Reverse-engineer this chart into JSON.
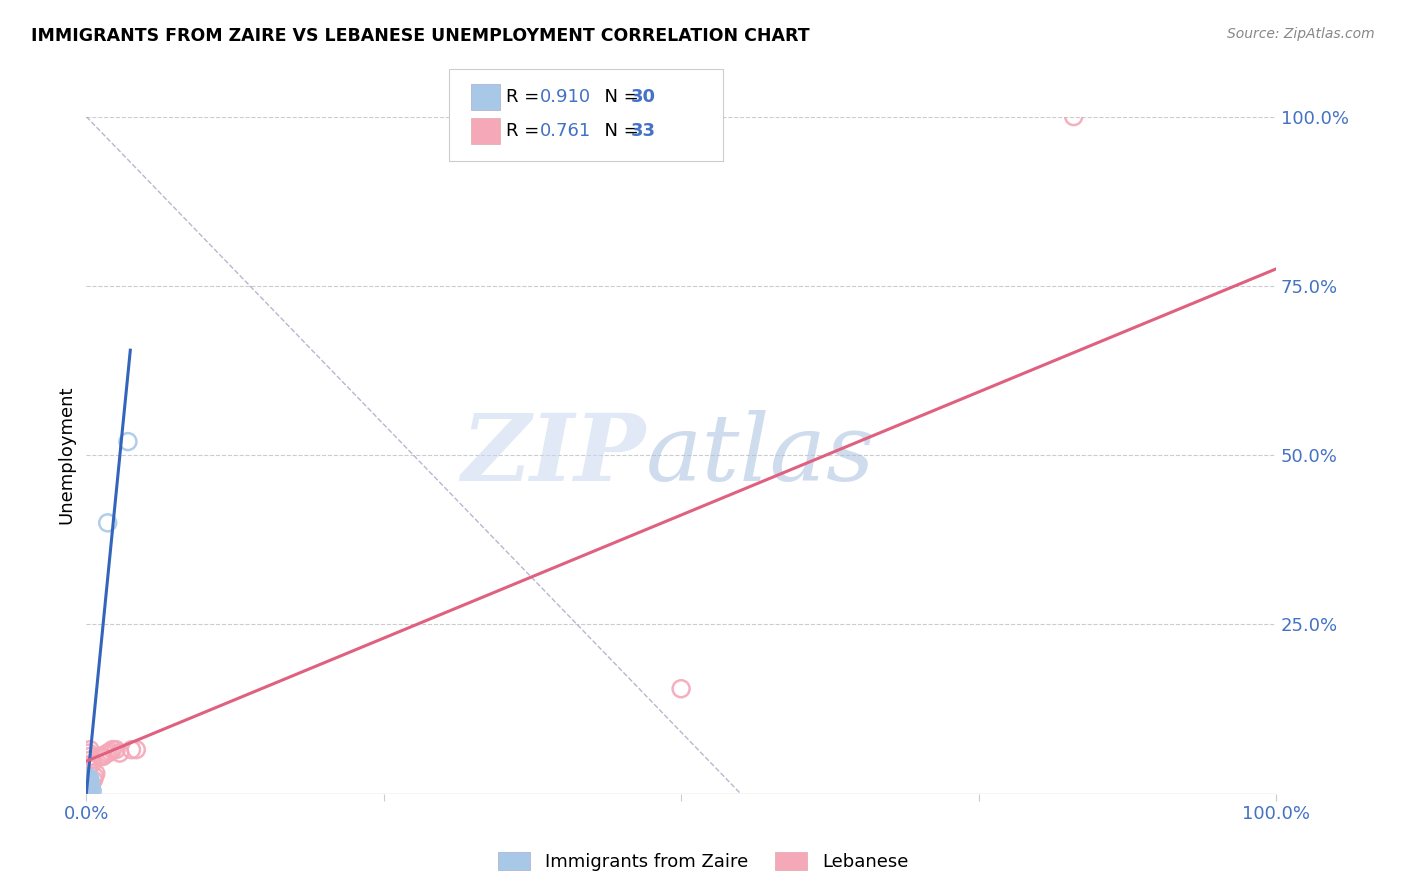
{
  "title": "IMMIGRANTS FROM ZAIRE VS LEBANESE UNEMPLOYMENT CORRELATION CHART",
  "source": "Source: ZipAtlas.com",
  "ylabel": "Unemployment",
  "axis_color": "#4472c4",
  "background_color": "#ffffff",
  "blue_R": "0.910",
  "blue_N": "30",
  "pink_R": "0.761",
  "pink_N": "33",
  "blue_color": "#A8C8E8",
  "pink_color": "#F4A8B8",
  "blue_line_color": "#3366BB",
  "pink_line_color": "#E06080",
  "blue_scatter": [
    [
      0.001,
      0.005
    ],
    [
      0.002,
      0.008
    ],
    [
      0.001,
      0.003
    ],
    [
      0.002,
      0.006
    ],
    [
      0.003,
      0.01
    ],
    [
      0.001,
      0.012
    ],
    [
      0.002,
      0.015
    ],
    [
      0.003,
      0.009
    ],
    [
      0.001,
      0.018
    ],
    [
      0.002,
      0.007
    ],
    [
      0.004,
      0.008
    ],
    [
      0.003,
      0.006
    ],
    [
      0.005,
      0.004
    ],
    [
      0.001,
      0.02
    ],
    [
      0.002,
      0.016
    ],
    [
      0.003,
      0.022
    ],
    [
      0.001,
      0.025
    ],
    [
      0.002,
      0.019
    ],
    [
      0.001,
      0.004
    ],
    [
      0.003,
      0.013
    ],
    [
      0.002,
      0.003
    ],
    [
      0.001,
      0.006
    ],
    [
      0.002,
      0.011
    ],
    [
      0.001,
      0.002
    ],
    [
      0.003,
      0.017
    ],
    [
      0.001,
      0.009
    ],
    [
      0.002,
      0.014
    ],
    [
      0.018,
      0.4
    ],
    [
      0.035,
      0.52
    ],
    [
      0.001,
      0.001
    ]
  ],
  "pink_scatter": [
    [
      0.001,
      0.025
    ],
    [
      0.002,
      0.04
    ],
    [
      0.003,
      0.055
    ],
    [
      0.004,
      0.05
    ],
    [
      0.005,
      0.045
    ],
    [
      0.002,
      0.06
    ],
    [
      0.003,
      0.065
    ],
    [
      0.006,
      0.02
    ],
    [
      0.007,
      0.025
    ],
    [
      0.008,
      0.03
    ],
    [
      0.012,
      0.055
    ],
    [
      0.014,
      0.055
    ],
    [
      0.016,
      0.058
    ],
    [
      0.018,
      0.06
    ],
    [
      0.02,
      0.062
    ],
    [
      0.022,
      0.065
    ],
    [
      0.025,
      0.065
    ],
    [
      0.028,
      0.06
    ],
    [
      0.038,
      0.065
    ],
    [
      0.042,
      0.065
    ],
    [
      0.001,
      0.015
    ],
    [
      0.002,
      0.012
    ],
    [
      0.001,
      0.004
    ],
    [
      0.002,
      0.002
    ],
    [
      0.001,
      0.008
    ],
    [
      0.003,
      0.018
    ],
    [
      0.001,
      0.003
    ],
    [
      0.002,
      0.007
    ],
    [
      0.5,
      0.155
    ],
    [
      0.83,
      1.0
    ],
    [
      0.001,
      0.001
    ],
    [
      0.002,
      0.005
    ],
    [
      0.003,
      0.003
    ]
  ],
  "blue_line": [
    [
      0.0,
      0.0
    ],
    [
      0.037,
      0.655
    ]
  ],
  "pink_line": [
    [
      0.0,
      0.048
    ],
    [
      1.0,
      0.775
    ]
  ],
  "diag_line": [
    [
      0.0,
      1.0
    ],
    [
      0.0,
      1.0
    ]
  ],
  "xlim": [
    0.0,
    1.0
  ],
  "ylim": [
    0.0,
    1.0
  ],
  "xtick_pos": [
    0.0,
    0.25,
    0.5,
    0.75,
    1.0
  ],
  "ytick_pos": [
    0.0,
    0.25,
    0.5,
    0.75,
    1.0
  ],
  "xticklabels": [
    "0.0%",
    "",
    "",
    "",
    "100.0%"
  ],
  "yticklabels_right": [
    "",
    "25.0%",
    "50.0%",
    "75.0%",
    "100.0%"
  ],
  "legend_labels": [
    "Immigrants from Zaire",
    "Lebanese"
  ],
  "watermark_zip_color": "#C8D8EE",
  "watermark_atlas_color": "#A8C0E0"
}
